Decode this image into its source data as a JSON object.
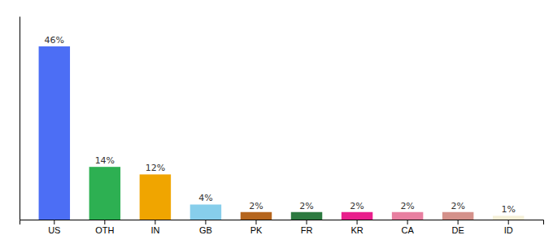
{
  "chart_data": {
    "type": "bar",
    "categories": [
      "US",
      "OTH",
      "IN",
      "GB",
      "PK",
      "FR",
      "KR",
      "CA",
      "DE",
      "ID"
    ],
    "values": [
      46,
      14,
      12,
      4,
      2,
      2,
      2,
      2,
      2,
      1
    ],
    "value_labels": [
      "46%",
      "14%",
      "12%",
      "4%",
      "2%",
      "2%",
      "2%",
      "2%",
      "2%",
      "1%"
    ],
    "colors": [
      "#4c6ef5",
      "#2db052",
      "#f0a500",
      "#87ceeb",
      "#b5651d",
      "#2d7a40",
      "#e91e8c",
      "#e87fa0",
      "#d4918a",
      "#f5f0d8"
    ],
    "ylim": [
      0,
      54
    ],
    "data_labels": true,
    "tick_labels": "x",
    "grid": false
  }
}
